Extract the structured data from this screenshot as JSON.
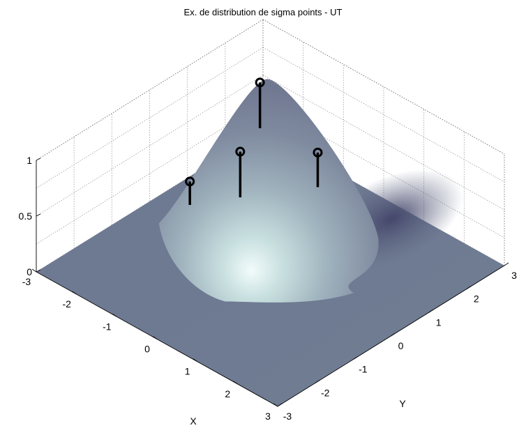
{
  "chart_data": {
    "type": "surface",
    "title": "Ex. de distribution de sigma points - UT",
    "xlabel": "X",
    "ylabel": "Y",
    "zlabel": "",
    "xlim": [
      -3,
      3
    ],
    "ylim": [
      -3,
      3
    ],
    "zlim": [
      0,
      1
    ],
    "x_ticks": [
      "-3",
      "-2",
      "-1",
      "0",
      "1",
      "2",
      "3"
    ],
    "y_ticks": [
      "-3",
      "-2",
      "-1",
      "0",
      "1",
      "2",
      "3"
    ],
    "z_ticks": [
      "0",
      "0.5",
      "1"
    ],
    "grid": true,
    "surface": {
      "description": "Gaussian hump",
      "peak": {
        "x": -1.7,
        "y": 1.7,
        "z": 1.0
      },
      "sigma": 1.1
    },
    "sigma_points": [
      {
        "x": -1.5,
        "y": 0.8,
        "z": 0.58
      },
      {
        "x": -2.0,
        "y": 0.0,
        "z": 0.38
      },
      {
        "x": -0.7,
        "y": 2.0,
        "z": 0.48
      },
      {
        "x": -2.7,
        "y": 2.6,
        "z": 0.58
      }
    ],
    "colors": {
      "surface_low": "#55577a",
      "surface_high": "#e8f4f4",
      "stem": "#000000"
    }
  }
}
